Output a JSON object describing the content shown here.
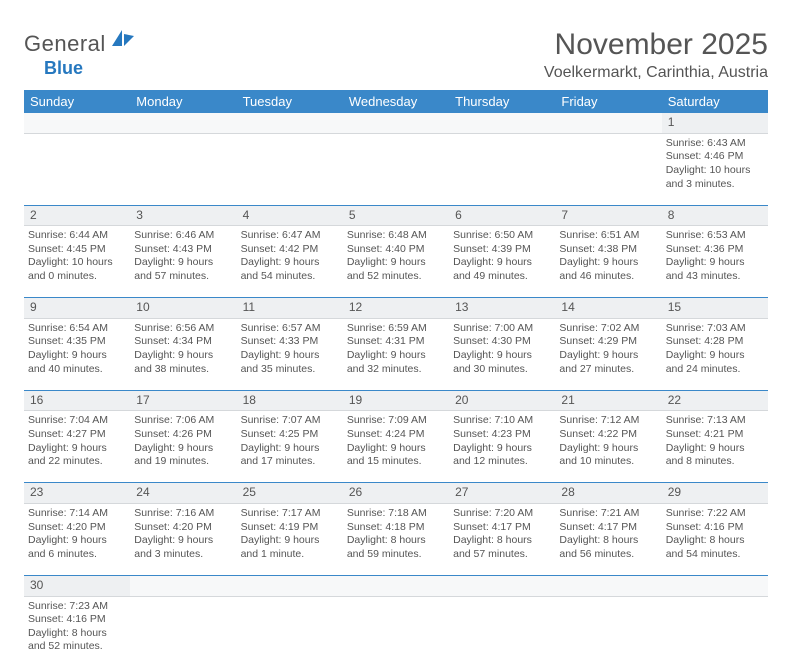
{
  "brand": {
    "text1": "General",
    "text2": "Blue"
  },
  "title": "November 2025",
  "location": "Voelkermarkt, Carinthia, Austria",
  "colors": {
    "header_bg": "#3a88c9",
    "header_text": "#ffffff",
    "divider": "#3a88c9",
    "daynum_bg": "#eef0f2",
    "text": "#555555",
    "brand_accent": "#2678bf"
  },
  "weekdays": [
    "Sunday",
    "Monday",
    "Tuesday",
    "Wednesday",
    "Thursday",
    "Friday",
    "Saturday"
  ],
  "weeks": [
    [
      null,
      null,
      null,
      null,
      null,
      null,
      {
        "n": "1",
        "sr": "6:43 AM",
        "ss": "4:46 PM",
        "dl": "10 hours and 3 minutes."
      }
    ],
    [
      {
        "n": "2",
        "sr": "6:44 AM",
        "ss": "4:45 PM",
        "dl": "10 hours and 0 minutes."
      },
      {
        "n": "3",
        "sr": "6:46 AM",
        "ss": "4:43 PM",
        "dl": "9 hours and 57 minutes."
      },
      {
        "n": "4",
        "sr": "6:47 AM",
        "ss": "4:42 PM",
        "dl": "9 hours and 54 minutes."
      },
      {
        "n": "5",
        "sr": "6:48 AM",
        "ss": "4:40 PM",
        "dl": "9 hours and 52 minutes."
      },
      {
        "n": "6",
        "sr": "6:50 AM",
        "ss": "4:39 PM",
        "dl": "9 hours and 49 minutes."
      },
      {
        "n": "7",
        "sr": "6:51 AM",
        "ss": "4:38 PM",
        "dl": "9 hours and 46 minutes."
      },
      {
        "n": "8",
        "sr": "6:53 AM",
        "ss": "4:36 PM",
        "dl": "9 hours and 43 minutes."
      }
    ],
    [
      {
        "n": "9",
        "sr": "6:54 AM",
        "ss": "4:35 PM",
        "dl": "9 hours and 40 minutes."
      },
      {
        "n": "10",
        "sr": "6:56 AM",
        "ss": "4:34 PM",
        "dl": "9 hours and 38 minutes."
      },
      {
        "n": "11",
        "sr": "6:57 AM",
        "ss": "4:33 PM",
        "dl": "9 hours and 35 minutes."
      },
      {
        "n": "12",
        "sr": "6:59 AM",
        "ss": "4:31 PM",
        "dl": "9 hours and 32 minutes."
      },
      {
        "n": "13",
        "sr": "7:00 AM",
        "ss": "4:30 PM",
        "dl": "9 hours and 30 minutes."
      },
      {
        "n": "14",
        "sr": "7:02 AM",
        "ss": "4:29 PM",
        "dl": "9 hours and 27 minutes."
      },
      {
        "n": "15",
        "sr": "7:03 AM",
        "ss": "4:28 PM",
        "dl": "9 hours and 24 minutes."
      }
    ],
    [
      {
        "n": "16",
        "sr": "7:04 AM",
        "ss": "4:27 PM",
        "dl": "9 hours and 22 minutes."
      },
      {
        "n": "17",
        "sr": "7:06 AM",
        "ss": "4:26 PM",
        "dl": "9 hours and 19 minutes."
      },
      {
        "n": "18",
        "sr": "7:07 AM",
        "ss": "4:25 PM",
        "dl": "9 hours and 17 minutes."
      },
      {
        "n": "19",
        "sr": "7:09 AM",
        "ss": "4:24 PM",
        "dl": "9 hours and 15 minutes."
      },
      {
        "n": "20",
        "sr": "7:10 AM",
        "ss": "4:23 PM",
        "dl": "9 hours and 12 minutes."
      },
      {
        "n": "21",
        "sr": "7:12 AM",
        "ss": "4:22 PM",
        "dl": "9 hours and 10 minutes."
      },
      {
        "n": "22",
        "sr": "7:13 AM",
        "ss": "4:21 PM",
        "dl": "9 hours and 8 minutes."
      }
    ],
    [
      {
        "n": "23",
        "sr": "7:14 AM",
        "ss": "4:20 PM",
        "dl": "9 hours and 6 minutes."
      },
      {
        "n": "24",
        "sr": "7:16 AM",
        "ss": "4:20 PM",
        "dl": "9 hours and 3 minutes."
      },
      {
        "n": "25",
        "sr": "7:17 AM",
        "ss": "4:19 PM",
        "dl": "9 hours and 1 minute."
      },
      {
        "n": "26",
        "sr": "7:18 AM",
        "ss": "4:18 PM",
        "dl": "8 hours and 59 minutes."
      },
      {
        "n": "27",
        "sr": "7:20 AM",
        "ss": "4:17 PM",
        "dl": "8 hours and 57 minutes."
      },
      {
        "n": "28",
        "sr": "7:21 AM",
        "ss": "4:17 PM",
        "dl": "8 hours and 56 minutes."
      },
      {
        "n": "29",
        "sr": "7:22 AM",
        "ss": "4:16 PM",
        "dl": "8 hours and 54 minutes."
      }
    ],
    [
      {
        "n": "30",
        "sr": "7:23 AM",
        "ss": "4:16 PM",
        "dl": "8 hours and 52 minutes."
      },
      null,
      null,
      null,
      null,
      null,
      null
    ]
  ],
  "labels": {
    "sunrise": "Sunrise: ",
    "sunset": "Sunset: ",
    "daylight": "Daylight: "
  }
}
